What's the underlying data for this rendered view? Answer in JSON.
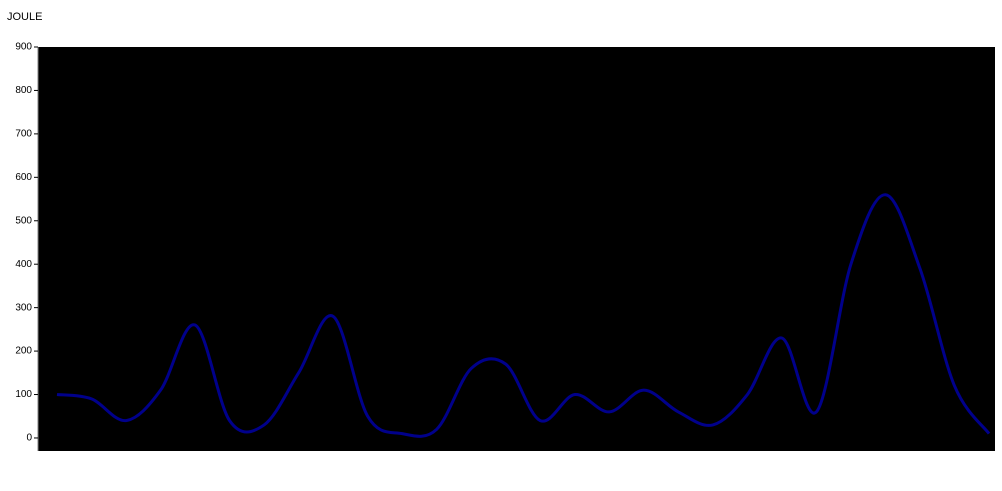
{
  "chart_data": {
    "type": "line",
    "ylabel": "JOULE",
    "categories": [
      null,
      null,
      null,
      null,
      null,
      null,
      null,
      null,
      null,
      null,
      null,
      null,
      null,
      null,
      null,
      null,
      null,
      null,
      null,
      null,
      null,
      null,
      null,
      null,
      null,
      null,
      null,
      null
    ],
    "series": [
      {
        "name": null,
        "color": "#00008b",
        "values": [
          100,
          90,
          40,
          110,
          260,
          40,
          30,
          150,
          280,
          50,
          10,
          20,
          160,
          170,
          40,
          100,
          60,
          110,
          60,
          30,
          100,
          230,
          60,
          400,
          560,
          390,
          120,
          10
        ]
      }
    ],
    "ylim": [
      -30,
      900
    ],
    "yticks": [
      0,
      100,
      200,
      300,
      400,
      500,
      600,
      700,
      800,
      900
    ],
    "background": "#000000"
  }
}
